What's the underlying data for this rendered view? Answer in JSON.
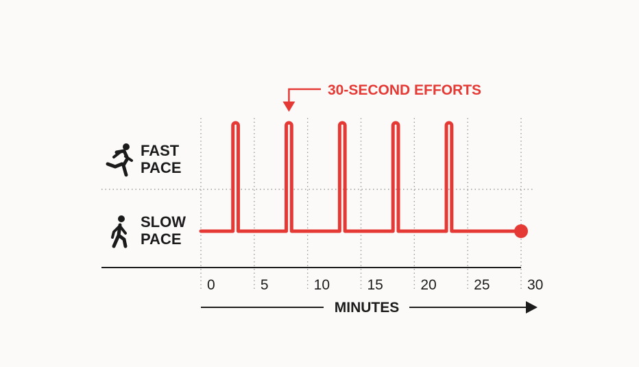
{
  "chart_data": {
    "type": "line",
    "title": "",
    "annotation": "30-SECOND EFFORTS",
    "xlabel": "MINUTES",
    "ylabel": "",
    "xlim": [
      0,
      30
    ],
    "x_ticks": [
      0,
      5,
      10,
      15,
      20,
      25,
      30
    ],
    "y_levels": [
      {
        "key": "slow",
        "label_lines": [
          "SLOW",
          "PACE"
        ],
        "icon": "walking-person-icon"
      },
      {
        "key": "fast",
        "label_lines": [
          "FAST",
          "PACE"
        ],
        "icon": "running-person-icon"
      }
    ],
    "series": [
      {
        "baseline": "slow",
        "effort_level": "fast",
        "effort_starts_min": [
          3,
          8,
          13,
          18,
          23
        ],
        "effort_duration_min": 0.5,
        "end_min": 30,
        "end_marker": "dot"
      }
    ],
    "annotated_effort_index": 1,
    "grid": true,
    "colors": {
      "line": "#e53935",
      "text": "#1b1b1b",
      "grid": "#9a9a9a",
      "axis": "#1b1b1b"
    }
  }
}
